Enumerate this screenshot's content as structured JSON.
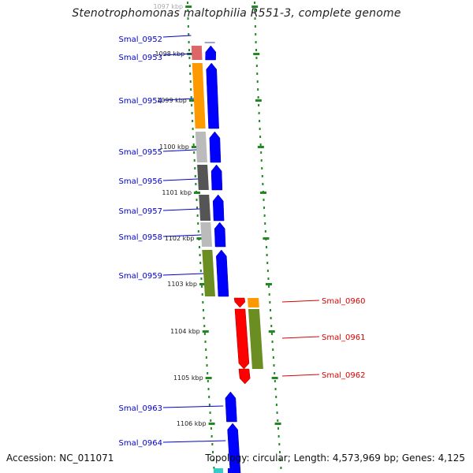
{
  "title": "Stenotrophomonas maltophilia R551-3, complete genome",
  "accession": "Accession: NC_011071",
  "info": {
    "topology": "Topology: circular;",
    "length": "Length: 4,573,969 bp;",
    "genes": "Genes: 4,125"
  },
  "colors": {
    "blue": "#0000ff",
    "red": "#ff0000",
    "label_blue": "#0000cc",
    "label_red": "#dd0000",
    "orange": "#ff9900",
    "olive": "#6b8e23",
    "dark_gray": "#555555",
    "light_gray": "#bbbbbb",
    "salmon": "#dd6666",
    "teal": "#33cccc",
    "green": "#33cc66",
    "tick_green": "#228822",
    "backbone": "#888888"
  },
  "ticks": [
    {
      "label": "1097 kbp"
    },
    {
      "label": "1098 kbp"
    },
    {
      "label": "1099 kbp"
    },
    {
      "label": "1100 kbp"
    },
    {
      "label": "1101 kbp"
    },
    {
      "label": "1102 kbp"
    },
    {
      "label": "1103 kbp"
    },
    {
      "label": "1104 kbp"
    },
    {
      "label": "1105 kbp"
    },
    {
      "label": "1106 kbp"
    }
  ],
  "genes_forward": [
    {
      "label": "Smal_0952"
    },
    {
      "label": "Smal_0953"
    },
    {
      "label": "Smal_0954"
    },
    {
      "label": "Smal_0955"
    },
    {
      "label": "Smal_0956"
    },
    {
      "label": "Smal_0957"
    },
    {
      "label": "Smal_0958"
    },
    {
      "label": "Smal_0959"
    },
    {
      "label": "Smal_0963"
    },
    {
      "label": "Smal_0964"
    }
  ],
  "genes_reverse": [
    {
      "label": "Smal_0960"
    },
    {
      "label": "Smal_0961"
    },
    {
      "label": "Smal_0962"
    }
  ]
}
